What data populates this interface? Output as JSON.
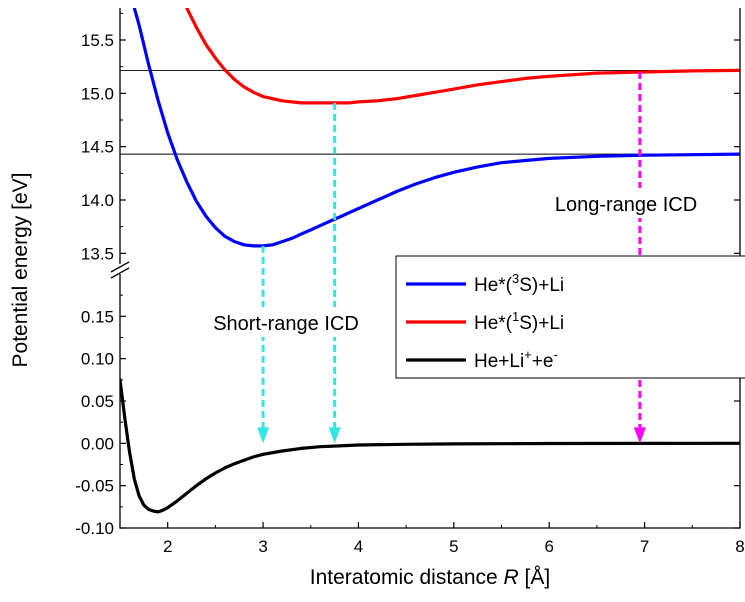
{
  "chart_data": {
    "type": "line",
    "xlabel_main": "Interatomic distance ",
    "xlabel_var": "R",
    "xlabel_unit": " [Å]",
    "ylabel": "Potential energy [eV]",
    "xlim": [
      1.5,
      8
    ],
    "x_ticks": [
      "2",
      "3",
      "4",
      "5",
      "6",
      "7",
      "8"
    ],
    "x_tick_values": [
      2,
      3,
      4,
      5,
      6,
      7,
      8
    ],
    "upper_ylim": [
      13.4,
      15.8
    ],
    "upper_y_ticks": [
      "13.5",
      "14.0",
      "14.5",
      "15.0",
      "15.5"
    ],
    "upper_y_tick_values": [
      13.5,
      14.0,
      14.5,
      15.0,
      15.5
    ],
    "lower_ylim": [
      -0.1,
      0.2
    ],
    "lower_y_ticks": [
      "-0.10",
      "-0.05",
      "0.00",
      "0.05",
      "0.10",
      "0.15"
    ],
    "lower_y_tick_values": [
      -0.1,
      -0.05,
      0.0,
      0.05,
      0.1,
      0.15
    ],
    "reference_lines": [
      14.43,
      15.215
    ],
    "series": [
      {
        "name": "He*(³S)+Li",
        "legend_base": "He*(",
        "legend_sup": "3",
        "legend_rest": "S)+Li",
        "color": "#0000ff",
        "panel": "upper",
        "x": [
          1.65,
          1.7,
          1.8,
          1.9,
          2.0,
          2.1,
          2.2,
          2.3,
          2.4,
          2.5,
          2.6,
          2.7,
          2.8,
          2.9,
          3.0,
          3.1,
          3.2,
          3.3,
          3.4,
          3.5,
          3.6,
          3.7,
          3.8,
          3.9,
          4.0,
          4.2,
          4.4,
          4.6,
          4.8,
          5.0,
          5.25,
          5.5,
          5.75,
          6.0,
          6.5,
          7.0,
          7.5,
          8.0
        ],
        "y": [
          15.8,
          15.64,
          15.27,
          14.93,
          14.63,
          14.38,
          14.17,
          13.99,
          13.85,
          13.74,
          13.66,
          13.61,
          13.58,
          13.57,
          13.57,
          13.58,
          13.61,
          13.64,
          13.68,
          13.72,
          13.76,
          13.8,
          13.84,
          13.88,
          13.92,
          14.0,
          14.08,
          14.15,
          14.21,
          14.26,
          14.31,
          14.35,
          14.37,
          14.39,
          14.41,
          14.42,
          14.425,
          14.43
        ]
      },
      {
        "name": "He*(¹S)+Li",
        "legend_base": "He*(",
        "legend_sup": "1",
        "legend_rest": "S)+Li",
        "color": "#ff0000",
        "panel": "upper",
        "x": [
          2.2,
          2.3,
          2.4,
          2.5,
          2.6,
          2.7,
          2.8,
          2.9,
          3.0,
          3.1,
          3.2,
          3.3,
          3.4,
          3.5,
          3.6,
          3.7,
          3.8,
          3.9,
          4.0,
          4.2,
          4.4,
          4.6,
          4.8,
          5.0,
          5.25,
          5.5,
          5.75,
          6.0,
          6.5,
          7.0,
          7.5,
          8.0
        ],
        "y": [
          15.8,
          15.62,
          15.46,
          15.33,
          15.22,
          15.13,
          15.06,
          15.01,
          14.97,
          14.95,
          14.93,
          14.92,
          14.91,
          14.91,
          14.91,
          14.91,
          14.91,
          14.91,
          14.92,
          14.93,
          14.95,
          14.98,
          15.01,
          15.04,
          15.08,
          15.11,
          15.14,
          15.16,
          15.19,
          15.2,
          15.21,
          15.215
        ]
      },
      {
        "name": "He+Li⁺+e⁻",
        "legend_base": "He+Li",
        "legend_sup": "+",
        "legend_rest": "+e",
        "legend_sup2": "-",
        "color": "#000000",
        "panel": "lower",
        "x": [
          1.5,
          1.55,
          1.6,
          1.65,
          1.7,
          1.75,
          1.8,
          1.85,
          1.9,
          1.95,
          2.0,
          2.1,
          2.2,
          2.3,
          2.4,
          2.5,
          2.6,
          2.7,
          2.8,
          2.9,
          3.0,
          3.2,
          3.4,
          3.6,
          3.8,
          4.0,
          4.5,
          5.0,
          5.5,
          6.0,
          7.0,
          8.0
        ],
        "y": [
          0.075,
          0.03,
          -0.01,
          -0.042,
          -0.062,
          -0.073,
          -0.078,
          -0.08,
          -0.081,
          -0.079,
          -0.076,
          -0.068,
          -0.059,
          -0.05,
          -0.042,
          -0.035,
          -0.029,
          -0.024,
          -0.02,
          -0.016,
          -0.013,
          -0.009,
          -0.006,
          -0.004,
          -0.003,
          -0.002,
          -0.0012,
          -0.0007,
          -0.0004,
          -0.0002,
          -0.0001,
          0.0
        ]
      }
    ],
    "arrows": [
      {
        "x": 3.0,
        "from_panel": "upper",
        "from_y": 13.57,
        "to_panel": "lower",
        "to_y": 0.0,
        "color": "#33e6e6"
      },
      {
        "x": 3.75,
        "from_panel": "upper",
        "from_y": 14.91,
        "to_panel": "lower",
        "to_y": 0.0,
        "color": "#33e6e6"
      },
      {
        "x": 6.95,
        "from_panel": "upper",
        "from_y": 15.2,
        "to_panel": "lower",
        "to_y": 0.0,
        "color": "#ff00ff"
      }
    ],
    "annotations": {
      "short_range": "Short-range ICD",
      "long_range": "Long-range ICD"
    },
    "legend_position": "center-right"
  }
}
